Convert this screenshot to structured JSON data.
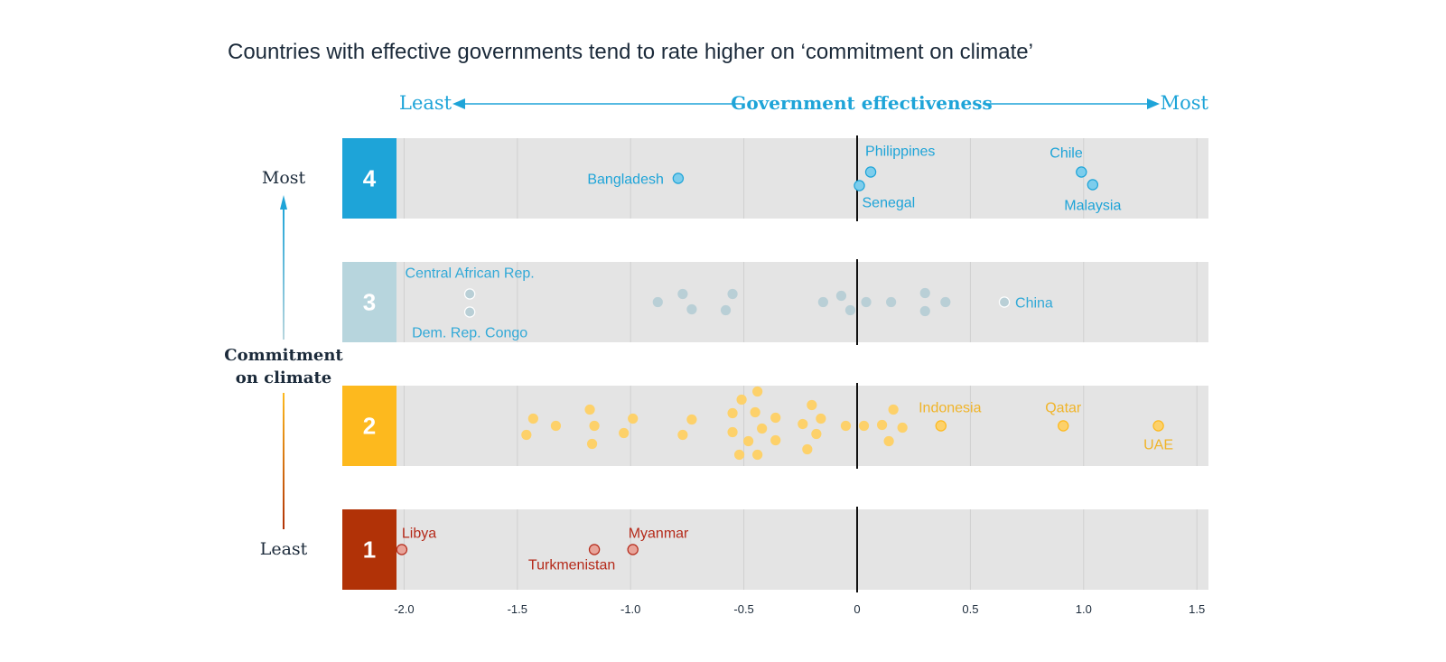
{
  "title": "Countries with effective governments tend to rate higher on ‘commitment on climate’",
  "x_axis": {
    "label": "Government effectiveness",
    "least_label": "Least",
    "most_label": "Most",
    "ticks": [
      "-2.0",
      "-1.5",
      "-1.0",
      "-0.5",
      "0",
      "0.5",
      "1.0",
      "1.5"
    ]
  },
  "y_axis": {
    "label_line1": "Commitment",
    "label_line2": "on climate",
    "most_label": "Most",
    "least_label": "Least"
  },
  "colors": {
    "level4": "#1ea4d8",
    "level3": "#b7d5dd",
    "level2": "#fdb91e",
    "level1": "#b13207",
    "band": "#e4e4e4",
    "grid": "#cfcfcf",
    "zero": "#111111",
    "axis_text": "#1b2a3a",
    "dot4": "#7dcdec",
    "dot3": "#b9cfd6",
    "dot2": "#fdd16a",
    "dot1": "#e8a49a",
    "label4": "#1ea4d8",
    "label3": "#32a9d7",
    "label2": "#f0b429",
    "label1": "#b52a1a"
  },
  "chart_data": {
    "type": "scatter",
    "x_range": [
      -2.0,
      1.5
    ],
    "x_axis_label": "Government effectiveness",
    "y_axis_label": "Commitment on climate",
    "rows": [
      {
        "level": "4",
        "points": [
          {
            "x": -0.79,
            "label": "Bangladesh"
          },
          {
            "x": 0.06,
            "label": "Philippines"
          },
          {
            "x": 0.01,
            "label": "Senegal"
          },
          {
            "x": 0.99,
            "label": "Chile"
          },
          {
            "x": 1.04,
            "label": "Malaysia"
          }
        ]
      },
      {
        "level": "3",
        "points": [
          {
            "x": -1.71,
            "label": "Central African Rep."
          },
          {
            "x": -1.71,
            "label": "Dem. Rep. Congo"
          },
          {
            "x": -0.88
          },
          {
            "x": -0.77
          },
          {
            "x": -0.73
          },
          {
            "x": -0.55
          },
          {
            "x": -0.58
          },
          {
            "x": -0.15
          },
          {
            "x": -0.07
          },
          {
            "x": -0.03
          },
          {
            "x": 0.04
          },
          {
            "x": 0.15
          },
          {
            "x": 0.3
          },
          {
            "x": 0.3
          },
          {
            "x": 0.39
          },
          {
            "x": 0.65,
            "label": "China"
          }
        ]
      },
      {
        "level": "2",
        "points": [
          {
            "x": -1.43
          },
          {
            "x": -1.46
          },
          {
            "x": -1.33
          },
          {
            "x": -1.18
          },
          {
            "x": -1.16
          },
          {
            "x": -1.17
          },
          {
            "x": -1.03
          },
          {
            "x": -0.99
          },
          {
            "x": -0.73
          },
          {
            "x": -0.77
          },
          {
            "x": -0.51
          },
          {
            "x": -0.44
          },
          {
            "x": -0.55
          },
          {
            "x": -0.45
          },
          {
            "x": -0.36
          },
          {
            "x": -0.55
          },
          {
            "x": -0.42
          },
          {
            "x": -0.48
          },
          {
            "x": -0.36
          },
          {
            "x": -0.52
          },
          {
            "x": -0.44
          },
          {
            "x": -0.2
          },
          {
            "x": -0.16
          },
          {
            "x": -0.24
          },
          {
            "x": -0.18
          },
          {
            "x": -0.22
          },
          {
            "x": -0.05
          },
          {
            "x": 0.03
          },
          {
            "x": 0.11
          },
          {
            "x": 0.16
          },
          {
            "x": 0.2
          },
          {
            "x": 0.14
          },
          {
            "x": 0.37,
            "label": "Indonesia"
          },
          {
            "x": 0.91,
            "label": "Qatar"
          },
          {
            "x": 1.33,
            "label": "UAE"
          }
        ]
      },
      {
        "level": "1",
        "points": [
          {
            "x": -2.01,
            "label": "Libya"
          },
          {
            "x": -1.16,
            "label": "Turkmenistan"
          },
          {
            "x": -0.99,
            "label": "Myanmar"
          }
        ]
      }
    ]
  }
}
